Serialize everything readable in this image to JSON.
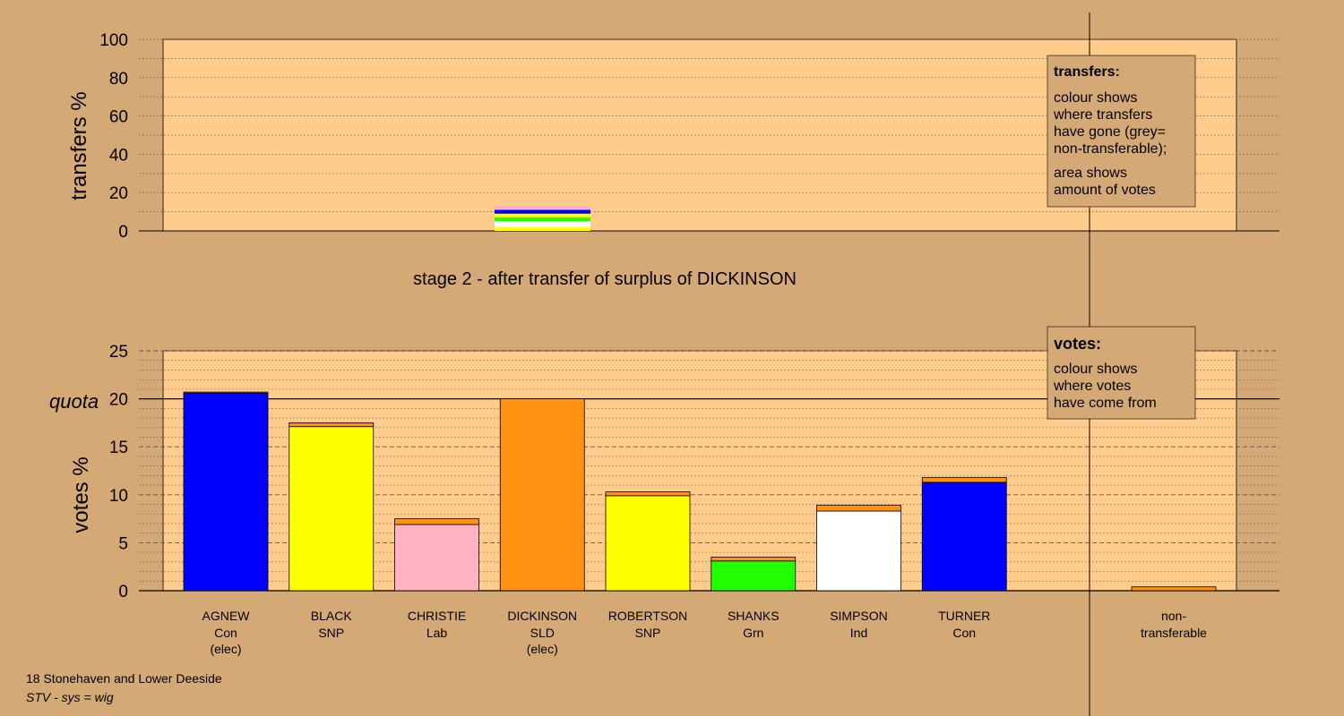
{
  "colors": {
    "background": "#d4a976",
    "panel": "#ffcc8c",
    "grid": "#555555",
    "legend_box": "#d4a976",
    "Con": "#0000ff",
    "SNP": "#ffff00",
    "Lab": "#ffb2c2",
    "SLD": "#ff9010",
    "Grn": "#22ff00",
    "Ind": "#ffffff"
  },
  "top_chart": {
    "ylabel": "transfers %",
    "y_ticks": [
      "0",
      "20",
      "40",
      "60",
      "80",
      "100"
    ],
    "ylim": [
      0,
      100
    ],
    "legend": {
      "title": "transfers:",
      "lines1": [
        "colour shows",
        "where transfers",
        "have gone (grey=",
        "non-transferable);"
      ],
      "lines2": [
        "area shows",
        "amount of votes"
      ]
    }
  },
  "stage_title": "stage 2 - after transfer of surplus of DICKINSON",
  "bottom_chart": {
    "ylabel": "votes %",
    "quota_label": "quota",
    "y_ticks": [
      "0",
      "5",
      "10",
      "15",
      "20",
      "25"
    ],
    "ylim": [
      0,
      25
    ],
    "legend": {
      "title": "votes:",
      "lines": [
        "colour shows",
        "where votes",
        "have come from"
      ]
    }
  },
  "chart_data": {
    "type": "bar",
    "title": "stage 2 - after transfer of surplus of DICKINSON",
    "quota": 20,
    "categories": [
      "AGNEW",
      "BLACK",
      "CHRISTIE",
      "DICKINSON",
      "ROBERTSON",
      "SHANKS",
      "SIMPSON",
      "TURNER",
      "non-transferable"
    ],
    "candidates": [
      {
        "name": "AGNEW",
        "party": "Con",
        "status": "(elec)",
        "color": "#0000ff",
        "base": 20.6,
        "transfer": 0.1
      },
      {
        "name": "BLACK",
        "party": "SNP",
        "status": "",
        "color": "#ffff00",
        "base": 17.1,
        "transfer": 0.4
      },
      {
        "name": "CHRISTIE",
        "party": "Lab",
        "status": "",
        "color": "#ffb2c2",
        "base": 6.9,
        "transfer": 0.6
      },
      {
        "name": "DICKINSON",
        "party": "SLD",
        "status": "(elec)",
        "color": "#ff9010",
        "base": 20.0,
        "transfer": 0
      },
      {
        "name": "ROBERTSON",
        "party": "SNP",
        "status": "",
        "color": "#ffff00",
        "base": 9.9,
        "transfer": 0.4
      },
      {
        "name": "SHANKS",
        "party": "Grn",
        "status": "",
        "color": "#22ff00",
        "base": 3.1,
        "transfer": 0.4
      },
      {
        "name": "SIMPSON",
        "party": "Ind",
        "status": "",
        "color": "#ffffff",
        "base": 8.3,
        "transfer": 0.6
      },
      {
        "name": "TURNER",
        "party": "Con",
        "status": "",
        "color": "#0000ff",
        "base": 11.3,
        "transfer": 0.5
      }
    ],
    "nontransferable": {
      "label": "non-transferable",
      "value": 0.4,
      "color": "#ff9010"
    },
    "transfers_stack": [
      {
        "party": "SNP",
        "color": "#ffff00",
        "value": 2
      },
      {
        "party": "Ind",
        "color": "#ffffff",
        "value": 3
      },
      {
        "party": "Grn",
        "color": "#22ff00",
        "value": 2
      },
      {
        "party": "SNP",
        "color": "#ffff00",
        "value": 2
      },
      {
        "party": "Con",
        "color": "#0000ff",
        "value": 2
      },
      {
        "party": "Lab",
        "color": "#ffb2c2",
        "value": 2
      }
    ]
  },
  "footer": {
    "line1": "18 Stonehaven and Lower Deeside",
    "line2": "STV - sys = wig"
  }
}
